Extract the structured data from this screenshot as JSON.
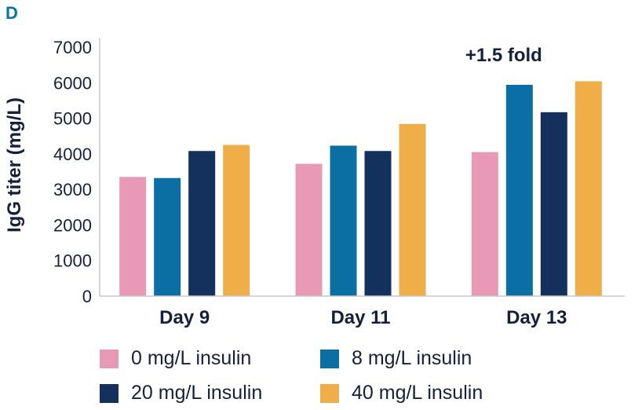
{
  "panel_label": "D",
  "colors": {
    "series": [
      "#e899b6",
      "#0b6fa4",
      "#13315c",
      "#f0ae48"
    ],
    "axis": "#c7c7c7",
    "text": "#14213d"
  },
  "chart_data": {
    "type": "bar",
    "categories": [
      "Day 9",
      "Day 11",
      "Day 13"
    ],
    "series": [
      {
        "name": "0 mg/L insulin",
        "values": [
          3350,
          3720,
          4050
        ]
      },
      {
        "name": "8 mg/L insulin",
        "values": [
          3320,
          4230,
          5940
        ]
      },
      {
        "name": "20 mg/L insulin",
        "values": [
          4080,
          4080,
          5170
        ]
      },
      {
        "name": "40 mg/L insulin",
        "values": [
          4250,
          4840,
          6040
        ]
      }
    ],
    "title": "",
    "xlabel": "",
    "ylabel": "IgG titer (mg/L)",
    "ylim": [
      0,
      7000
    ],
    "yticks": [
      0,
      1000,
      2000,
      3000,
      4000,
      5000,
      6000,
      7000
    ],
    "grid": false,
    "legend_position": "bottom",
    "annotations": [
      {
        "text": "+1.5 fold",
        "category": "Day 13"
      }
    ]
  }
}
